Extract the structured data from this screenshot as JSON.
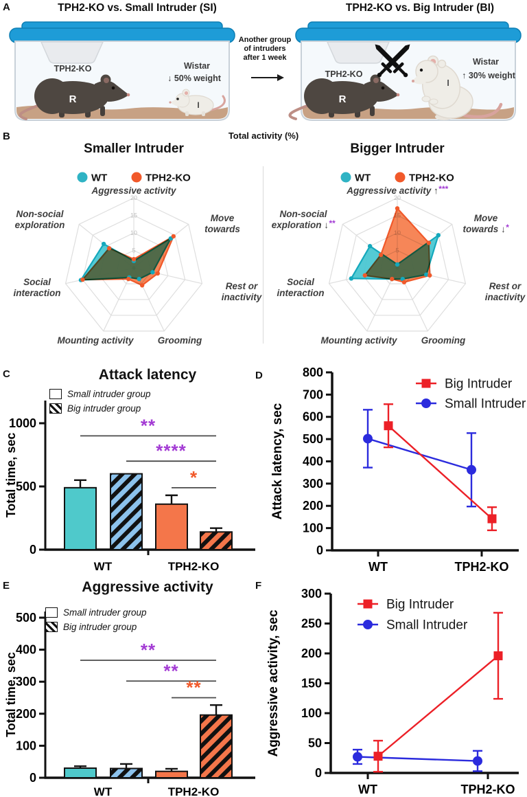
{
  "colors": {
    "purple": "#A33BD4",
    "orange": "#F1592A",
    "teal": "#2FB3C4",
    "red": "#EC2027",
    "blue": "#2B2BDD"
  },
  "panels": {
    "a": {
      "letter": "A",
      "left_title": "TPH2-KO vs. Small Intruder (SI)",
      "right_title": "TPH2-KO vs. Big Intruder (BI)",
      "connector_lines": [
        "Another group",
        "of intruders",
        "after 1 week"
      ],
      "left_cage": {
        "resident": "TPH2-KO",
        "resident_mark": "R",
        "intruder_species": "Wistar",
        "intruder_weight": "↓  50% weight",
        "intruder_mark": "I"
      },
      "right_cage": {
        "resident": "TPH2-KO",
        "resident_mark": "R",
        "intruder_species": "Wistar",
        "intruder_weight": "↑  30% weight",
        "intruder_mark": "I"
      }
    },
    "b": {
      "letter": "B",
      "header": "Total activity (%)"
    },
    "c": {
      "letter": "C"
    },
    "d": {
      "letter": "D"
    },
    "e": {
      "letter": "E"
    },
    "f": {
      "letter": "F"
    }
  },
  "chart_data": [
    {
      "id": "radar-smaller-intruder",
      "type": "radar",
      "title": "Smaller Intruder",
      "legend": [
        {
          "name": "WT",
          "color": "#2FB3C4"
        },
        {
          "name": "TPH2-KO",
          "color": "#F1592A"
        }
      ],
      "rmax": 20,
      "rticks": [
        5,
        10,
        15,
        20
      ],
      "axes": [
        {
          "lines": [
            "Aggressive activity"
          ],
          "arrow": "",
          "stars": ""
        },
        {
          "lines": [
            "Move",
            "towards"
          ],
          "arrow": "",
          "stars": ""
        },
        {
          "lines": [
            "Rest or",
            "inactivity"
          ],
          "arrow": "",
          "stars": ""
        },
        {
          "lines": [
            "Grooming"
          ],
          "arrow": "",
          "stars": ""
        },
        {
          "lines": [
            "Mounting activity"
          ],
          "arrow": "",
          "stars": ""
        },
        {
          "lines": [
            "Social",
            "interaction"
          ],
          "arrow": "",
          "stars": ""
        },
        {
          "lines": [
            "Non-social",
            "exploration"
          ],
          "arrow": "",
          "stars": ""
        }
      ],
      "series": [
        {
          "name": "WT",
          "stroke": "#14A8BC",
          "fill": "#45C6D0",
          "values": [
            2,
            13.5,
            5.5,
            3.5,
            3,
            15.5,
            11
          ]
        },
        {
          "name": "TPH2-KO",
          "stroke": "#F1592A",
          "fill": "#F4713B",
          "values": [
            2.5,
            14.5,
            7,
            5.5,
            3.5,
            15,
            9
          ]
        }
      ]
    },
    {
      "id": "radar-bigger-intruder",
      "type": "radar",
      "title": "Bigger Intruder",
      "legend": [
        {
          "name": "WT",
          "color": "#2FB3C4"
        },
        {
          "name": "TPH2-KO",
          "color": "#F1592A"
        }
      ],
      "rmax": 20,
      "rticks": [
        5,
        10,
        15,
        20
      ],
      "axes": [
        {
          "lines": [
            "Aggressive activity"
          ],
          "arrow": "↑",
          "stars": "***"
        },
        {
          "lines": [
            "Move",
            "towards"
          ],
          "arrow": "↓",
          "stars": "*"
        },
        {
          "lines": [
            "Rest or",
            "inactivity"
          ],
          "arrow": "",
          "stars": ""
        },
        {
          "lines": [
            "Grooming"
          ],
          "arrow": "",
          "stars": ""
        },
        {
          "lines": [
            "Mounting activity"
          ],
          "arrow": "",
          "stars": ""
        },
        {
          "lines": [
            "Social",
            "interaction"
          ],
          "arrow": "",
          "stars": ""
        },
        {
          "lines": [
            "Non-social",
            "exploration"
          ],
          "arrow": "↓",
          "stars": "**"
        }
      ],
      "series": [
        {
          "name": "WT",
          "stroke": "#14A8BC",
          "fill": "#45C6D0",
          "values": [
            1,
            15,
            8.5,
            3.5,
            3.5,
            13.5,
            10
          ]
        },
        {
          "name": "TPH2-KO",
          "stroke": "#F1592A",
          "fill": "#F4713B",
          "values": [
            17,
            11.5,
            9.5,
            4.5,
            3.5,
            9.5,
            6
          ]
        }
      ]
    },
    {
      "id": "bars-attack-latency",
      "type": "bar",
      "title": "Attack latency",
      "ylabel": "Total time, sec",
      "ylim": [
        0,
        1180
      ],
      "yticks": [
        0,
        500,
        1000
      ],
      "legend": [
        {
          "label": "Small intruder group",
          "hatch": false
        },
        {
          "label": "Big intruder group",
          "hatch": true
        }
      ],
      "group_labels": [
        "WT",
        "TPH2-KO"
      ],
      "bars": [
        {
          "group": "WT",
          "set": "small",
          "value": 490,
          "err": 60,
          "color": "#4FC9CB",
          "hatch": false
        },
        {
          "group": "WT",
          "set": "big",
          "value": 600,
          "err": 0,
          "color": "#8CC2EC",
          "hatch": true
        },
        {
          "group": "TPH2-KO",
          "set": "small",
          "value": 360,
          "err": 70,
          "color": "#F4764A",
          "hatch": false
        },
        {
          "group": "TPH2-KO",
          "set": "big",
          "value": 140,
          "err": 30,
          "color": "#F4764A",
          "hatch": true
        }
      ],
      "sig": [
        {
          "a": 0,
          "b": 3,
          "y": 900,
          "stars": "**",
          "color": "#A33BD4"
        },
        {
          "a": 1,
          "b": 3,
          "y": 700,
          "stars": "****",
          "color": "#A33BD4"
        },
        {
          "a": 2,
          "b": 3,
          "y": 490,
          "stars": "*",
          "color": "#F1592A"
        }
      ]
    },
    {
      "id": "line-attack-latency",
      "type": "line",
      "ylabel": "Attack latency, sec",
      "ylim": [
        0,
        800
      ],
      "ytick_step": 100,
      "categories": [
        "WT",
        "TPH2-KO"
      ],
      "series": [
        {
          "name": "Big Intruder",
          "color": "#EC2027",
          "marker": "square",
          "values": [
            560,
            142
          ],
          "err": [
            97,
            52
          ]
        },
        {
          "name": "Small Intruder",
          "color": "#2B2BDD",
          "marker": "circle",
          "values": [
            502,
            362
          ],
          "err": [
            130,
            165
          ]
        }
      ]
    },
    {
      "id": "bars-aggressive-activity",
      "type": "bar",
      "title": "Aggressive activity",
      "ylabel": "Total time, sec",
      "ylim": [
        0,
        520
      ],
      "yticks": [
        0,
        100,
        200,
        300,
        400,
        500
      ],
      "legend": [
        {
          "label": "Small intruder group",
          "hatch": false
        },
        {
          "label": "Big intruder group",
          "hatch": true
        }
      ],
      "group_labels": [
        "WT",
        "TPH2-KO"
      ],
      "bars": [
        {
          "group": "WT",
          "set": "small",
          "value": 30,
          "err": 6,
          "color": "#4FC9CB",
          "hatch": false
        },
        {
          "group": "WT",
          "set": "big",
          "value": 29,
          "err": 14,
          "color": "#8CC2EC",
          "hatch": true
        },
        {
          "group": "TPH2-KO",
          "set": "small",
          "value": 20,
          "err": 8,
          "color": "#F4764A",
          "hatch": false
        },
        {
          "group": "TPH2-KO",
          "set": "big",
          "value": 196,
          "err": 31,
          "color": "#F4764A",
          "hatch": true
        }
      ],
      "sig": [
        {
          "a": 0,
          "b": 3,
          "y": 367,
          "stars": "**",
          "color": "#A33BD4"
        },
        {
          "a": 1,
          "b": 3,
          "y": 302,
          "stars": "**",
          "color": "#A33BD4"
        },
        {
          "a": 2,
          "b": 3,
          "y": 250,
          "stars": "**",
          "color": "#F1592A"
        }
      ]
    },
    {
      "id": "line-aggressive-activity",
      "type": "line",
      "ylabel": "Aggressive activity, sec",
      "ylim": [
        0,
        300
      ],
      "ytick_step": 50,
      "categories": [
        "WT",
        "TPH2-KO"
      ],
      "series": [
        {
          "name": "Big Intruder",
          "color": "#EC2027",
          "marker": "square",
          "values": [
            28,
            196
          ],
          "err": [
            26,
            72
          ]
        },
        {
          "name": "Small Intruder",
          "color": "#2B2BDD",
          "marker": "circle",
          "values": [
            27,
            20
          ],
          "err": [
            12,
            17
          ]
        }
      ]
    }
  ]
}
